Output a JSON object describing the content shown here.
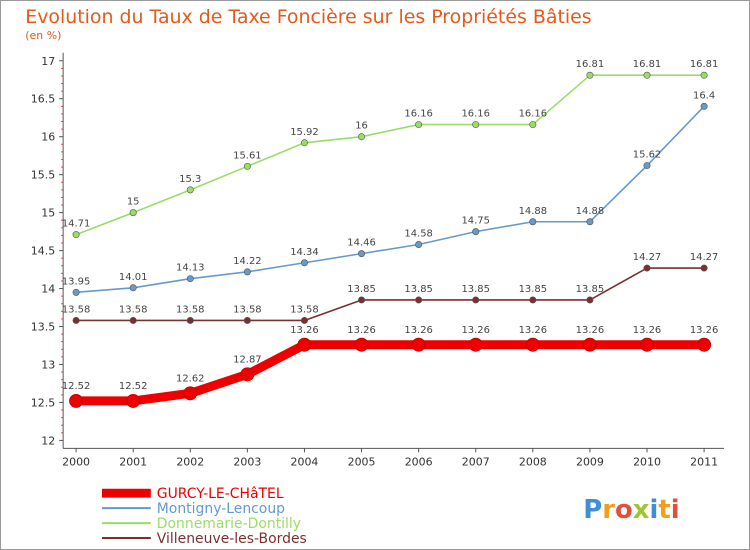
{
  "chart_data": {
    "type": "line",
    "title": "Evolution du Taux de Taxe Foncière sur les Propriétés Bâties",
    "subtitle": "(en %)",
    "x": [
      "2000",
      "2001",
      "2002",
      "2003",
      "2004",
      "2005",
      "2006",
      "2007",
      "2008",
      "2009",
      "2010",
      "2011"
    ],
    "ylim": [
      12,
      17
    ],
    "yticks": [
      "12",
      "12.5",
      "13",
      "13.5",
      "14",
      "14.5",
      "15",
      "15.5",
      "16",
      "16.5",
      "17"
    ],
    "grid": false,
    "legend_position": "bottom-left",
    "series": [
      {
        "name": "GURCY-LE-CHâTEL",
        "color": "#ee0000",
        "values": [
          12.52,
          12.52,
          12.62,
          12.87,
          13.26,
          13.26,
          13.26,
          13.26,
          13.26,
          13.26,
          13.26,
          13.26
        ],
        "labels": [
          "12.52",
          "12.52",
          "12.62",
          "12.87",
          "13.26",
          "13.26",
          "13.26",
          "13.26",
          "13.26",
          "13.26",
          "13.26",
          "13.26"
        ]
      },
      {
        "name": "Montigny-Lencoup",
        "color": "#6699cc",
        "values": [
          13.95,
          14.01,
          14.13,
          14.22,
          14.34,
          14.46,
          14.58,
          14.75,
          14.88,
          14.88,
          15.62,
          16.4
        ],
        "labels": [
          "13.95",
          "14.01",
          "14.13",
          "14.22",
          "14.34",
          "14.46",
          "14.58",
          "14.75",
          "14.88",
          "14.88",
          "15.62",
          "16.4"
        ]
      },
      {
        "name": "Donnemarie-Dontilly",
        "color": "#99dd66",
        "values": [
          14.71,
          15,
          15.3,
          15.61,
          15.92,
          16,
          16.16,
          16.16,
          16.16,
          16.81,
          16.81,
          16.81
        ],
        "labels": [
          "14.71",
          "15",
          "15.3",
          "15.61",
          "15.92",
          "16",
          "16.16",
          "16.16",
          "16.16",
          "16.81",
          "16.81",
          "16.81"
        ]
      },
      {
        "name": "Villeneuve-les-Bordes",
        "color": "#7a3030",
        "values": [
          13.58,
          13.58,
          13.58,
          13.58,
          13.58,
          13.85,
          13.85,
          13.85,
          13.85,
          13.85,
          14.27,
          14.27
        ],
        "labels": [
          "13.58",
          "13.58",
          "13.58",
          "13.58",
          "13.58",
          "13.85",
          "13.85",
          "13.85",
          "13.85",
          "13.85",
          "14.27",
          "14.27"
        ]
      }
    ]
  },
  "branding": {
    "logo_text": "Proxiti",
    "letter_colors": [
      "#3f8fd8",
      "#f0a020",
      "#e05040",
      "#9bc830",
      "#3f8fd8",
      "#f0a020",
      "#e05040"
    ]
  },
  "colors": {
    "title": "#e45a1a",
    "axis": "#333333"
  }
}
